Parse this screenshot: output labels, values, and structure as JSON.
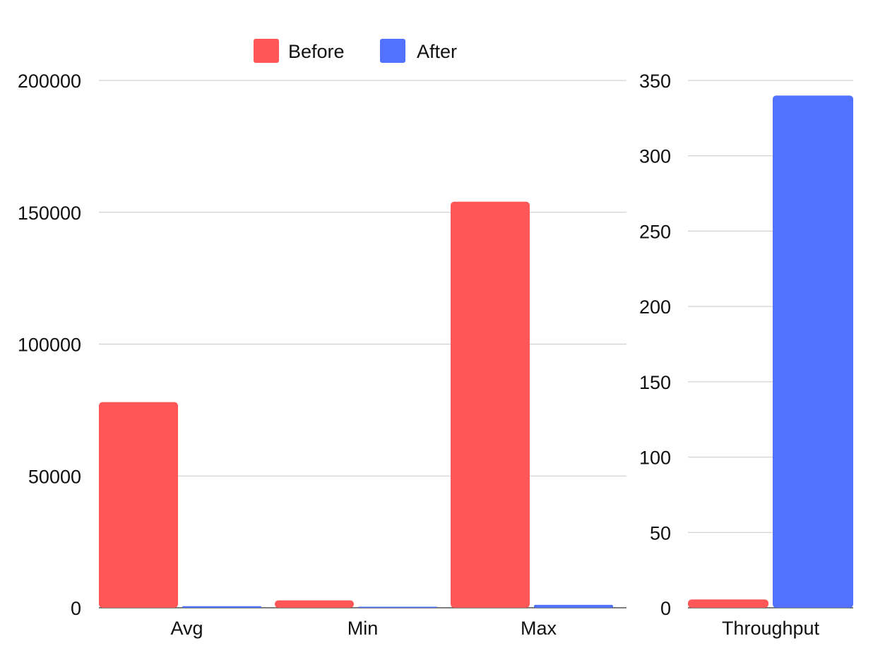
{
  "chart_data": [
    {
      "type": "bar",
      "categories": [
        "Avg",
        "Min",
        "Max"
      ],
      "series": [
        {
          "name": "Before",
          "values": [
            78000,
            2800,
            154000
          ]
        },
        {
          "name": "After",
          "values": [
            600,
            150,
            1100
          ]
        }
      ],
      "ylim": [
        0,
        200000
      ],
      "yticks": [
        "0",
        "50000",
        "100000",
        "150000",
        "200000"
      ],
      "grid": true,
      "legend": "top-center"
    },
    {
      "type": "bar",
      "categories": [
        "Throughput"
      ],
      "series": [
        {
          "name": "Before",
          "values": [
            5.5
          ]
        },
        {
          "name": "After",
          "values": [
            340
          ]
        }
      ],
      "ylim": [
        0,
        350
      ],
      "yticks": [
        "0",
        "50",
        "100",
        "150",
        "200",
        "250",
        "300",
        "350"
      ],
      "grid": true
    }
  ],
  "legend": {
    "items": [
      {
        "label": "Before",
        "color": "#ff5757"
      },
      {
        "label": "After",
        "color": "#5271ff"
      }
    ]
  }
}
